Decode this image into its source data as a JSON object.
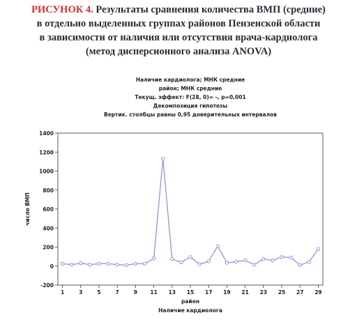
{
  "figure": {
    "label": "РИСУНОК 4.",
    "caption_lines": [
      "Результаты сравнения количества ВМП (средние)",
      "в отдельно выделенных группах районов Пензенской области",
      "в зависимости от наличия или отсутствия врача-кардиолога",
      "(метод дисперсионного анализа ANOVA)"
    ]
  },
  "chart_data": {
    "type": "line",
    "title_lines": [
      "Наличие кардиолога; МНК средние",
      "район; МНК средние",
      "Текущ. эффект: F(28, 0)= -, p=0,001",
      "Декомпозиция гипотезы",
      "Вертик. столбцы равны 0,95 доверительных интервалов"
    ],
    "xlabel": "район",
    "footnote": "Наличие кардиолога",
    "ylabel": "число ВМП",
    "x": [
      1,
      2,
      3,
      4,
      5,
      6,
      7,
      8,
      9,
      10,
      11,
      12,
      13,
      14,
      15,
      16,
      17,
      18,
      19,
      20,
      21,
      22,
      23,
      24,
      25,
      26,
      27,
      28,
      29
    ],
    "series": [
      {
        "color": "#8a98d2",
        "values": [
          25,
          15,
          30,
          15,
          25,
          25,
          15,
          10,
          25,
          25,
          80,
          1130,
          75,
          40,
          95,
          20,
          50,
          210,
          35,
          45,
          60,
          15,
          75,
          60,
          95,
          90,
          10,
          45,
          180
        ]
      }
    ],
    "xlim": [
      0.5,
      29.5
    ],
    "xticks": [
      1,
      3,
      5,
      7,
      9,
      11,
      13,
      15,
      17,
      19,
      21,
      23,
      25,
      27,
      29
    ],
    "ylim": [
      -200,
      1400
    ],
    "yticks": [
      -200,
      0,
      200,
      400,
      600,
      800,
      1000,
      1200,
      1400
    ],
    "grid": false
  }
}
